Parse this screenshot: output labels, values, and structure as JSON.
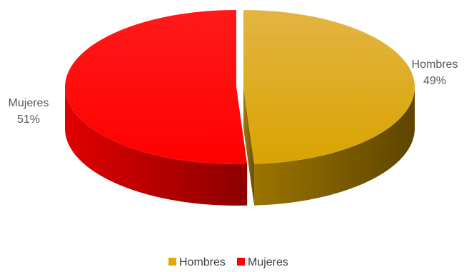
{
  "chart_data": {
    "type": "pie",
    "style": "3d-exploded",
    "title": "",
    "categories": [
      "Hombres",
      "Mujeres"
    ],
    "values": [
      49,
      51
    ],
    "value_suffix": "%",
    "colors": {
      "Hombres": "#E0A800",
      "Mujeres": "#FF0000"
    },
    "data_labels": [
      {
        "category": "Hombres",
        "text": "49%"
      },
      {
        "category": "Mujeres",
        "text": "51%"
      }
    ],
    "legend": {
      "position": "bottom",
      "entries": [
        "Hombres",
        "Mujeres"
      ]
    }
  }
}
